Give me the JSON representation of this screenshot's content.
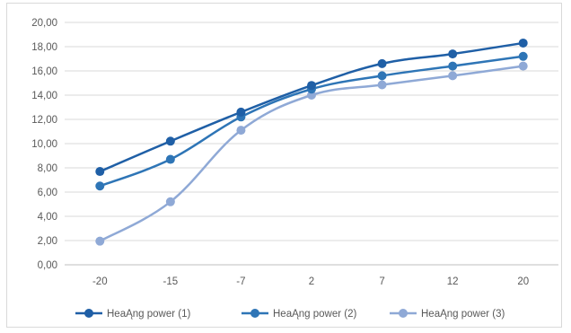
{
  "chart_data": {
    "type": "line",
    "title": "",
    "xlabel": "",
    "ylabel": "",
    "categories": [
      "-20",
      "-15",
      "-7",
      "2",
      "7",
      "12",
      "20"
    ],
    "ylim": [
      0,
      20
    ],
    "ytick_step": 2,
    "ytick_labels": [
      "0,00",
      "2,00",
      "4,00",
      "6,00",
      "8,00",
      "10,00",
      "12,00",
      "14,00",
      "16,00",
      "18,00",
      "20,00"
    ],
    "grid": true,
    "smooth": true,
    "legend_position": "bottom",
    "series": [
      {
        "name": "HeaĄng power (1)",
        "color": "#1f5fa6",
        "values": [
          7.7,
          10.2,
          12.6,
          14.8,
          16.6,
          17.4,
          18.3
        ]
      },
      {
        "name": "HeaĄng power (2)",
        "color": "#2e75b6",
        "values": [
          6.5,
          8.7,
          12.2,
          14.5,
          15.6,
          16.4,
          17.2
        ]
      },
      {
        "name": "HeaĄng power (3)",
        "color": "#8fa9d6",
        "values": [
          1.95,
          5.2,
          11.1,
          14.0,
          14.85,
          15.6,
          16.4
        ]
      }
    ]
  }
}
